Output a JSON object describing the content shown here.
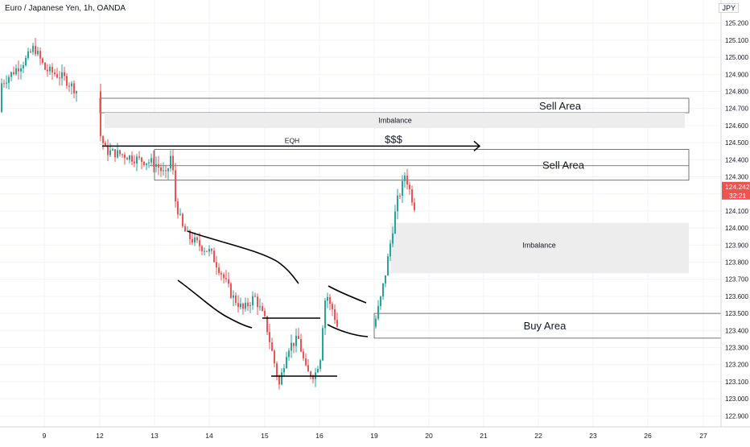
{
  "header": {
    "title": "Euro / Japanese Yen, 1h, OANDA",
    "currency": "JPY"
  },
  "colors": {
    "up": "#26a69a",
    "down": "#ef5350",
    "price_tag": "#ef5350",
    "zone_fill": "#ededed",
    "zone_stroke": "#555555",
    "grid": "#f0f3fa",
    "axis_text": "#131722"
  },
  "chart_data": {
    "type": "candlestick",
    "title": "Euro / Japanese Yen, 1h, OANDA",
    "ylim": [
      122.88,
      125.32
    ],
    "y_ticks": [
      "125.200",
      "125.100",
      "125.000",
      "124.900",
      "124.800",
      "124.700",
      "124.600",
      "124.500",
      "124.400",
      "124.300",
      "124.200",
      "124.100",
      "124.000",
      "123.900",
      "123.800",
      "123.700",
      "123.600",
      "123.500",
      "123.400",
      "123.300",
      "123.200",
      "123.100",
      "123.000",
      "122.900"
    ],
    "x_ticks": [
      "9",
      "12",
      "13",
      "14",
      "15",
      "16",
      "19",
      "20",
      "21",
      "22",
      "23",
      "26",
      "27"
    ],
    "last_price": "124.242",
    "countdown": "32:21",
    "price_path": [
      [
        0,
        124.68
      ],
      [
        1,
        124.5
      ],
      [
        3,
        124.62
      ],
      [
        5,
        124.73
      ],
      [
        6,
        124.78
      ],
      [
        8,
        124.99
      ],
      [
        8.4,
        125.06
      ],
      [
        9,
        124.93
      ],
      [
        10,
        124.88
      ],
      [
        11.2,
        124.75
      ],
      [
        11.8,
        124.7
      ],
      [
        12,
        124.54
      ],
      [
        12.1,
        124.45
      ],
      [
        12.4,
        124.43
      ],
      [
        12.7,
        124.4
      ],
      [
        13,
        124.38
      ],
      [
        13.2,
        124.3
      ],
      [
        13.3,
        124.45
      ],
      [
        13.35,
        124.18
      ],
      [
        13.5,
        124.0
      ],
      [
        13.6,
        123.95
      ],
      [
        13.8,
        123.9
      ],
      [
        14,
        123.86
      ],
      [
        14.2,
        123.74
      ],
      [
        14.4,
        123.6
      ],
      [
        14.6,
        123.52
      ],
      [
        14.8,
        123.6
      ],
      [
        15,
        123.45
      ],
      [
        15.1,
        123.3
      ],
      [
        15.25,
        123.08
      ],
      [
        15.4,
        123.3
      ],
      [
        15.6,
        123.35
      ],
      [
        15.75,
        123.15
      ],
      [
        15.9,
        123.14
      ],
      [
        16.05,
        123.3
      ],
      [
        16.2,
        123.55
      ],
      [
        16.35,
        123.62
      ],
      [
        16.5,
        123.55
      ],
      [
        16.7,
        123.52
      ],
      [
        16.85,
        123.45
      ],
      [
        17,
        123.4
      ],
      [
        19,
        123.45
      ],
      [
        19.1,
        123.58
      ],
      [
        19.2,
        123.75
      ],
      [
        19.3,
        123.95
      ],
      [
        19.4,
        124.15
      ],
      [
        19.5,
        124.25
      ],
      [
        19.55,
        124.32
      ],
      [
        19.65,
        124.2
      ],
      [
        19.75,
        124.1
      ],
      [
        19.9,
        124.25
      ],
      [
        20,
        124.12
      ],
      [
        20.1,
        124.25
      ],
      [
        20.15,
        124.24
      ]
    ],
    "zones": [
      {
        "kind": "sell",
        "label": "Sell Area",
        "y_top": 124.76,
        "y_bottom": 124.675,
        "x_start": 12,
        "x_end": 27
      },
      {
        "kind": "imbalance",
        "label": "Imbalance",
        "y_top": 124.675,
        "y_bottom": 124.585,
        "x_start": 12,
        "x_end": 27
      },
      {
        "kind": "sell",
        "label": "Sell Area",
        "y_top": 124.46,
        "y_bottom": 124.28,
        "x_start": 13,
        "x_end": 27
      },
      {
        "kind": "imbalance",
        "label": "Imbalance",
        "y_top": 124.03,
        "y_bottom": 123.735,
        "x_start": 19.3,
        "x_end": 27
      },
      {
        "kind": "buy",
        "label": "Buy Area",
        "y_top": 123.5,
        "y_bottom": 123.355,
        "x_start": 19,
        "x_end": 27
      }
    ],
    "annotations": {
      "eqh_label": "EQH",
      "eqh_y": 124.48,
      "liquidity_label": "$$$"
    }
  }
}
